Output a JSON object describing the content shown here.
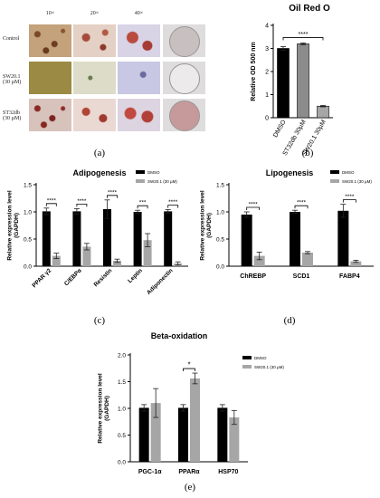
{
  "panel_a": {
    "column_headers": [
      "10×",
      "20×",
      "40×"
    ],
    "row_labels": [
      {
        "name": "Control",
        "dose": ""
      },
      {
        "name": "SW20.1",
        "dose": "(30 µM)"
      },
      {
        "name": "ST32db",
        "dose": "(30 µM)"
      }
    ],
    "caption": "(a)"
  },
  "captions": {
    "b": "(b)",
    "c": "(c)",
    "d": "(d)",
    "e": "(e)"
  },
  "colors": {
    "dmso": "#000000",
    "treated": "#a6a6a6",
    "st32db": "#8c8c8c"
  },
  "chart_data": [
    {
      "id": "b",
      "type": "bar",
      "title": "Oil Red O",
      "ylabel": "Relative OD 500 nm",
      "ylim": [
        0,
        4
      ],
      "yticks": [
        0,
        1,
        2,
        3,
        4
      ],
      "categories": [
        "DMSO",
        "ST32db 30µM",
        "SW20.1 30µM"
      ],
      "values": [
        3.0,
        3.2,
        0.5
      ],
      "errors": [
        0.08,
        0.04,
        0.03
      ],
      "significance": [
        {
          "from": 0,
          "to": 2,
          "label": "****"
        }
      ]
    },
    {
      "id": "c",
      "type": "bar",
      "title": "Adipogenesis",
      "ylabel": "Relative expression level (GAPDH)",
      "ylim": [
        0,
        1.5
      ],
      "yticks": [
        0.0,
        0.5,
        1.0,
        1.5
      ],
      "categories": [
        "PPAR γ2",
        "C/EBPα",
        "Resistin",
        "Leptin",
        "Adiponectin"
      ],
      "legend_position": "top-right",
      "series": [
        {
          "name": "DMSO",
          "values": [
            1.01,
            1.01,
            1.05,
            1.0,
            1.01
          ],
          "errors": [
            0.06,
            0.05,
            0.17,
            0.03,
            0.03
          ]
        },
        {
          "name": "SW20.1 (30 µM)",
          "values": [
            0.19,
            0.36,
            0.1,
            0.48,
            0.05
          ],
          "errors": [
            0.05,
            0.06,
            0.03,
            0.12,
            0.03
          ]
        }
      ],
      "significance": [
        "****",
        "****",
        "****",
        "***",
        "****"
      ]
    },
    {
      "id": "d",
      "type": "bar",
      "title": "Lipogenesis",
      "ylabel": "Relative expression level (GAPDH)",
      "ylim": [
        0,
        1.5
      ],
      "yticks": [
        0.0,
        0.5,
        1.0,
        1.5
      ],
      "categories": [
        "ChREBP",
        "SCD1",
        "FABP4"
      ],
      "legend_position": "top-right",
      "series": [
        {
          "name": "DMSO",
          "values": [
            0.95,
            1.0,
            1.02
          ],
          "errors": [
            0.05,
            0.03,
            0.12
          ]
        },
        {
          "name": "SW20.1 (30 µM)",
          "values": [
            0.19,
            0.25,
            0.09
          ],
          "errors": [
            0.07,
            0.02,
            0.02
          ]
        }
      ],
      "significance": [
        "****",
        "****",
        "****"
      ]
    },
    {
      "id": "e",
      "type": "bar",
      "title": "Beta-oxidation",
      "ylabel": "Relative expression level (GAPDH)",
      "ylim": [
        0,
        2.0
      ],
      "yticks": [
        0.0,
        0.5,
        1.0,
        1.5,
        2.0
      ],
      "categories": [
        "PGC-1α",
        "PPARα",
        "HSP70"
      ],
      "legend_position": "top-right",
      "series": [
        {
          "name": "DMSO",
          "values": [
            1.01,
            1.01,
            1.01
          ],
          "errors": [
            0.06,
            0.06,
            0.06
          ]
        },
        {
          "name": "SW20.1 (30 µM)",
          "values": [
            1.1,
            1.56,
            0.83
          ],
          "errors": [
            0.27,
            0.1,
            0.13
          ]
        }
      ],
      "significance": [
        "",
        "*",
        ""
      ]
    }
  ]
}
